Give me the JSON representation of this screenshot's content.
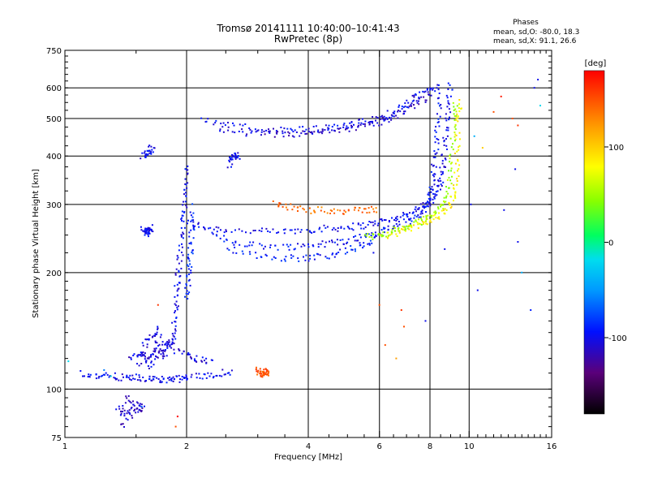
{
  "chart_data": {
    "type": "scatter",
    "title": "Tromsø 20141111 10:40:00–10:41:43",
    "subtitle": "RwPretec (8p)",
    "info": {
      "heading": "Phases",
      "line1": "mean, sd,O: -80.0, 18.3",
      "line2": "mean, sd,X:  91.1, 26.6"
    },
    "xlabel": "Frequency [MHz]",
    "ylabel": "Stationary phase Virtual Height [km]",
    "x_scale": "log",
    "y_scale": "log",
    "xlim": [
      1,
      16
    ],
    "ylim": [
      75,
      750
    ],
    "x_ticks": [
      1,
      2,
      4,
      6,
      8,
      10,
      16
    ],
    "y_ticks": [
      75,
      100,
      200,
      300,
      400,
      500,
      600,
      750
    ],
    "x_grid": [
      2,
      4,
      6,
      8,
      10
    ],
    "y_grid": [
      100,
      200,
      300,
      400,
      500,
      600
    ],
    "colorbar": {
      "label": "[deg]",
      "range": [
        -180,
        180
      ],
      "ticks": [
        100,
        0,
        -100
      ]
    },
    "traces": [
      {
        "name_hint": "o-lower",
        "phase": -100,
        "points": [
          [
            2.0,
            270
          ],
          [
            2.2,
            262
          ],
          [
            2.5,
            258
          ],
          [
            3.0,
            255
          ],
          [
            3.5,
            255
          ],
          [
            4.0,
            258
          ],
          [
            4.5,
            260
          ],
          [
            5.0,
            262
          ],
          [
            5.5,
            265
          ],
          [
            6.0,
            270
          ],
          [
            6.5,
            275
          ],
          [
            7.0,
            283
          ],
          [
            7.5,
            293
          ],
          [
            8.0,
            305
          ],
          [
            8.3,
            320
          ],
          [
            8.5,
            340
          ],
          [
            8.6,
            370
          ],
          [
            8.7,
            420
          ],
          [
            8.8,
            480
          ],
          [
            8.9,
            550
          ],
          [
            9.0,
            620
          ]
        ]
      },
      {
        "name_hint": "o-lower-2",
        "phase": -95,
        "points": [
          [
            2.3,
            250
          ],
          [
            2.6,
            240
          ],
          [
            3.0,
            235
          ],
          [
            3.5,
            233
          ],
          [
            4.0,
            235
          ],
          [
            4.5,
            238
          ],
          [
            5.0,
            242
          ],
          [
            5.5,
            248
          ],
          [
            6.0,
            255
          ],
          [
            6.5,
            262
          ],
          [
            7.0,
            270
          ],
          [
            7.5,
            280
          ],
          [
            7.8,
            295
          ],
          [
            8.0,
            310
          ],
          [
            8.1,
            340
          ],
          [
            8.2,
            380
          ],
          [
            8.3,
            430
          ],
          [
            8.4,
            500
          ],
          [
            8.5,
            580
          ]
        ]
      },
      {
        "name_hint": "o-bottom",
        "phase": -90,
        "points": [
          [
            2.5,
            232
          ],
          [
            3.0,
            222
          ],
          [
            3.5,
            218
          ],
          [
            4.0,
            218
          ],
          [
            4.5,
            222
          ],
          [
            5.0,
            228
          ],
          [
            5.5,
            236
          ],
          [
            6.0,
            245
          ]
        ]
      },
      {
        "name_hint": "x-trace",
        "phase": 85,
        "points": [
          [
            6.0,
            248
          ],
          [
            6.5,
            252
          ],
          [
            7.0,
            258
          ],
          [
            7.5,
            265
          ],
          [
            8.0,
            272
          ],
          [
            8.5,
            282
          ],
          [
            9.0,
            300
          ],
          [
            9.2,
            320
          ],
          [
            9.3,
            360
          ],
          [
            9.35,
            420
          ],
          [
            9.4,
            500
          ],
          [
            9.5,
            560
          ]
        ]
      },
      {
        "name_hint": "x-trace-2",
        "phase": 50,
        "points": [
          [
            5.5,
            246
          ],
          [
            6.0,
            250
          ],
          [
            6.5,
            256
          ],
          [
            7.0,
            262
          ],
          [
            7.5,
            270
          ],
          [
            8.0,
            280
          ],
          [
            8.5,
            295
          ],
          [
            8.8,
            320
          ],
          [
            9.0,
            360
          ],
          [
            9.1,
            420
          ],
          [
            9.2,
            500
          ],
          [
            9.25,
            560
          ]
        ]
      },
      {
        "name_hint": "upper-band",
        "phase": -100,
        "points": [
          [
            2.2,
            500
          ],
          [
            2.5,
            480
          ],
          [
            3.0,
            470
          ],
          [
            3.5,
            465
          ],
          [
            4.0,
            468
          ],
          [
            4.5,
            472
          ],
          [
            5.0,
            480
          ],
          [
            5.5,
            490
          ],
          [
            6.0,
            500
          ],
          [
            6.5,
            520
          ],
          [
            7.0,
            545
          ],
          [
            7.5,
            570
          ],
          [
            8.0,
            590
          ],
          [
            8.4,
            610
          ]
        ]
      },
      {
        "name_hint": "upper-band-2",
        "phase": -110,
        "points": [
          [
            2.4,
            470
          ],
          [
            2.8,
            460
          ],
          [
            3.2,
            455
          ],
          [
            3.6,
            455
          ],
          [
            4.0,
            458
          ],
          [
            4.5,
            462
          ],
          [
            5.0,
            470
          ],
          [
            5.5,
            480
          ],
          [
            6.0,
            490
          ],
          [
            6.5,
            505
          ],
          [
            7.0,
            525
          ],
          [
            7.5,
            550
          ],
          [
            8.0,
            575
          ]
        ]
      },
      {
        "name_hint": "orange-band",
        "phase": 140,
        "points": [
          [
            3.3,
            300
          ],
          [
            3.6,
            295
          ],
          [
            4.0,
            290
          ],
          [
            4.5,
            290
          ],
          [
            5.0,
            288
          ],
          [
            5.5,
            290
          ],
          [
            6.0,
            292
          ]
        ]
      },
      {
        "name_hint": "e-vertical",
        "phase": -100,
        "points": [
          [
            1.85,
            135
          ],
          [
            1.87,
            150
          ],
          [
            1.89,
            170
          ],
          [
            1.9,
            190
          ],
          [
            1.92,
            210
          ],
          [
            1.94,
            240
          ],
          [
            1.96,
            270
          ],
          [
            1.98,
            300
          ],
          [
            2.0,
            340
          ],
          [
            2.02,
            380
          ]
        ]
      },
      {
        "name_hint": "e-vertical-2",
        "phase": -90,
        "points": [
          [
            2.0,
            170
          ],
          [
            2.02,
            190
          ],
          [
            2.04,
            210
          ],
          [
            2.05,
            230
          ],
          [
            2.06,
            260
          ],
          [
            2.07,
            300
          ]
        ]
      },
      {
        "name_hint": "es-layer",
        "phase": -100,
        "points": [
          [
            1.1,
            110
          ],
          [
            1.2,
            108
          ],
          [
            1.3,
            108
          ],
          [
            1.4,
            107
          ],
          [
            1.5,
            107
          ],
          [
            1.6,
            106
          ],
          [
            1.7,
            106
          ],
          [
            1.8,
            106
          ],
          [
            1.9,
            106
          ],
          [
            2.0,
            107
          ],
          [
            2.2,
            108
          ],
          [
            2.4,
            110
          ],
          [
            2.6,
            111
          ]
        ]
      },
      {
        "name_hint": "es-cloud",
        "phase": -105,
        "points": [
          [
            1.45,
            120
          ],
          [
            1.55,
            125
          ],
          [
            1.6,
            118
          ],
          [
            1.7,
            130
          ],
          [
            1.75,
            122
          ],
          [
            1.8,
            135
          ],
          [
            1.85,
            128
          ],
          [
            1.65,
            140
          ],
          [
            1.5,
            115
          ],
          [
            1.95,
            125
          ],
          [
            2.1,
            120
          ],
          [
            2.3,
            118
          ],
          [
            1.55,
            132
          ],
          [
            1.72,
            145
          ],
          [
            1.6,
            112
          ],
          [
            1.9,
            140
          ]
        ]
      },
      {
        "name_hint": "low-cluster",
        "phase": -110,
        "points": [
          [
            1.35,
            90
          ],
          [
            1.45,
            85
          ],
          [
            1.5,
            92
          ],
          [
            1.55,
            88
          ],
          [
            1.42,
            95
          ],
          [
            1.38,
            80
          ],
          [
            1.6,
            93
          ]
        ]
      },
      {
        "name_hint": "orange-blob",
        "phase": 150,
        "points": [
          [
            3.0,
            112
          ],
          [
            3.05,
            110
          ],
          [
            3.1,
            109
          ],
          [
            3.15,
            111
          ],
          [
            3.2,
            110
          ]
        ]
      },
      {
        "name_hint": "mid-blob",
        "phase": -100,
        "points": [
          [
            1.55,
            260
          ],
          [
            1.6,
            255
          ],
          [
            1.62,
            258
          ],
          [
            1.58,
            252
          ],
          [
            1.65,
            262
          ]
        ]
      },
      {
        "name_hint": "high-blob",
        "phase": -100,
        "points": [
          [
            1.55,
            400
          ],
          [
            1.6,
            410
          ],
          [
            1.65,
            420
          ],
          [
            1.58,
            405
          ]
        ]
      },
      {
        "name_hint": "blob-2.6",
        "phase": -100,
        "points": [
          [
            2.55,
            380
          ],
          [
            2.6,
            395
          ],
          [
            2.65,
            405
          ],
          [
            2.7,
            390
          ]
        ]
      }
    ],
    "scatter_outliers": [
      [
        1.02,
        118,
        -20
      ],
      [
        1.25,
        112,
        -60
      ],
      [
        1.3,
        108,
        -20
      ],
      [
        1.55,
        90,
        -60
      ],
      [
        1.88,
        80,
        150
      ],
      [
        1.9,
        85,
        180
      ],
      [
        1.7,
        165,
        160
      ],
      [
        5.8,
        225,
        -100
      ],
      [
        6.0,
        165,
        150
      ],
      [
        6.8,
        160,
        160
      ],
      [
        7.8,
        150,
        -100
      ],
      [
        8.7,
        230,
        -100
      ],
      [
        10.5,
        180,
        -100
      ],
      [
        10.8,
        420,
        100
      ],
      [
        11.5,
        520,
        150
      ],
      [
        12.0,
        570,
        170
      ],
      [
        12.8,
        500,
        150
      ],
      [
        13.2,
        480,
        160
      ],
      [
        12.2,
        290,
        -100
      ],
      [
        13.0,
        370,
        -100
      ],
      [
        13.2,
        240,
        -100
      ],
      [
        13.5,
        200,
        -40
      ],
      [
        14.2,
        160,
        -90
      ],
      [
        15.0,
        540,
        -20
      ],
      [
        14.5,
        600,
        -100
      ],
      [
        14.8,
        630,
        -100
      ],
      [
        6.2,
        130,
        150
      ],
      [
        6.6,
        120,
        120
      ],
      [
        6.9,
        145,
        150
      ],
      [
        10.1,
        300,
        -100
      ],
      [
        10.3,
        450,
        -40
      ]
    ]
  }
}
